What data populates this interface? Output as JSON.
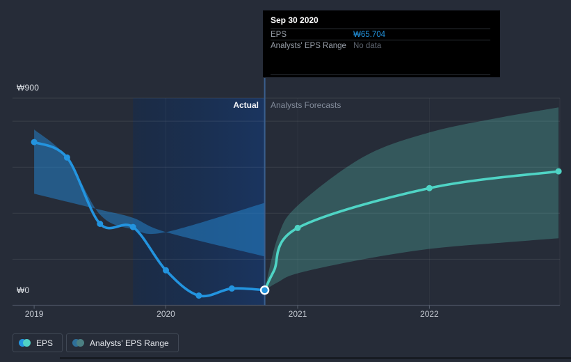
{
  "colors": {
    "page_bg": "#262c38",
    "eps_line": "#2394df",
    "forecast_line": "#4fd4c5",
    "historical_band": "rgba(36,130,200,0.55)",
    "forecast_band": "rgba(94,207,191,0.27)",
    "divider_line": "#3a5f8e",
    "axis_line": "#4a5261",
    "grid_line": "rgba(255,255,255,0.09)",
    "tick_mark": "#5a6270",
    "tooltip_bg": "#000000"
  },
  "y_axis": {
    "max_label": "₩900",
    "min_label": "₩0"
  },
  "sections": {
    "actual": "Actual",
    "forecast": "Analysts Forecasts"
  },
  "tooltip": {
    "date": "Sep 30 2020",
    "rows": [
      {
        "label": "EPS",
        "value": "₩65.704"
      },
      {
        "label": "Analysts' EPS Range",
        "value": "No data"
      }
    ]
  },
  "legend": [
    {
      "label": "EPS",
      "dot_colors": [
        "#2394df",
        "#4fd1c5"
      ]
    },
    {
      "label": "Analysts' EPS Range",
      "dot_colors": [
        "#2e6f99",
        "#4b7f82"
      ]
    }
  ],
  "chart_data": {
    "type": "line",
    "title": "EPS — actual vs analysts forecasts",
    "currency": "KRW",
    "x_range": [
      2018.836,
      2022.99
    ],
    "y_range": [
      0,
      900
    ],
    "x_ticks": [
      {
        "label": "2019",
        "value": 2019
      },
      {
        "label": "2020",
        "value": 2020
      },
      {
        "label": "2021",
        "value": 2021
      },
      {
        "label": "2022",
        "value": 2022
      }
    ],
    "y_gridlines": [
      900,
      800,
      600,
      400,
      200
    ],
    "highlight_span": [
      2019.75,
      2020.75
    ],
    "divider_x": 2020.75,
    "series": [
      {
        "name": "EPS (actual)",
        "type": "line",
        "x": [
          2019.0,
          2019.25,
          2019.5,
          2019.75,
          2020.0,
          2020.25,
          2020.5,
          2020.75
        ],
        "y": [
          709,
          642,
          354,
          340,
          152,
          42,
          73,
          65.704
        ],
        "markers": [
          true,
          true,
          true,
          true,
          true,
          true,
          true,
          true
        ],
        "highlight_last": true
      },
      {
        "name": "EPS (analysts forecast)",
        "type": "line",
        "x": [
          2020.75,
          2020.82,
          2021.0,
          2022.0,
          2022.98
        ],
        "y": [
          65.704,
          150,
          336,
          509,
          582
        ],
        "markers": [
          false,
          false,
          true,
          true,
          true
        ],
        "highlight_last": false
      },
      {
        "name": "Analysts' EPS Range (historical)",
        "type": "band",
        "x": [
          2019.0,
          2019.25,
          2019.5,
          2019.75,
          2020.0,
          2020.75
        ],
        "high": [
          764,
          642,
          394,
          330,
          318,
          445
        ],
        "low": [
          485,
          450,
          415,
          380,
          318,
          212
        ]
      },
      {
        "name": "Analysts' EPS forecast range",
        "type": "band",
        "x": [
          2020.75,
          2020.85,
          2021.0,
          2021.5,
          2022.0,
          2022.5,
          2022.98
        ],
        "high": [
          66,
          297,
          433,
          645,
          751,
          812,
          860
        ],
        "low": [
          66,
          100,
          139,
          200,
          245,
          270,
          291
        ]
      }
    ]
  }
}
